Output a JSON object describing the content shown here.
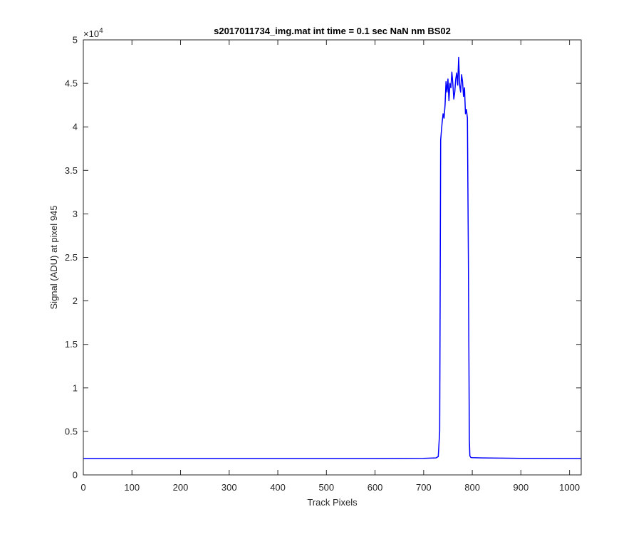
{
  "chart_data": {
    "type": "line",
    "title": "s2017011734_img.mat int time = 0.1 sec  NaN nm BS02",
    "xlabel": "Track Pixels",
    "ylabel": "Signal (ADU) at pixel 945",
    "xlim": [
      0,
      1024
    ],
    "ylim": [
      0,
      50000
    ],
    "x_ticks": [
      0,
      100,
      200,
      300,
      400,
      500,
      600,
      700,
      800,
      900,
      1000
    ],
    "y_ticks": [
      0,
      0.5,
      1,
      1.5,
      2,
      2.5,
      3,
      3.5,
      4,
      4.5,
      5
    ],
    "y_tick_labels": [
      "0",
      "0.5",
      "1",
      "1.5",
      "2",
      "2.5",
      "3",
      "3.5",
      "4",
      "4.5",
      "5"
    ],
    "y_multiplier_base": "×10",
    "y_multiplier_exp": "4",
    "grid": false,
    "series": [
      {
        "color": "#0000ff",
        "x": [
          0,
          100,
          200,
          300,
          400,
          500,
          600,
          700,
          725,
          730,
          733,
          735,
          738,
          740,
          742,
          744,
          746,
          748,
          750,
          752,
          754,
          756,
          758,
          760,
          762,
          764,
          766,
          768,
          770,
          772,
          774,
          776,
          778,
          780,
          782,
          784,
          786,
          788,
          790,
          792,
          794,
          795,
          797,
          800,
          820,
          900,
          1000,
          1024
        ],
        "y": [
          1880,
          1880,
          1880,
          1880,
          1880,
          1880,
          1880,
          1900,
          1950,
          2100,
          5000,
          38500,
          40500,
          41500,
          41000,
          42500,
          45200,
          44000,
          45500,
          43000,
          45000,
          44500,
          46300,
          45000,
          43200,
          44000,
          45500,
          46200,
          44800,
          48000,
          44800,
          44000,
          46000,
          45200,
          43500,
          44500,
          41500,
          42000,
          41000,
          25000,
          4000,
          2200,
          2000,
          1980,
          1950,
          1900,
          1880,
          1880
        ]
      }
    ]
  }
}
